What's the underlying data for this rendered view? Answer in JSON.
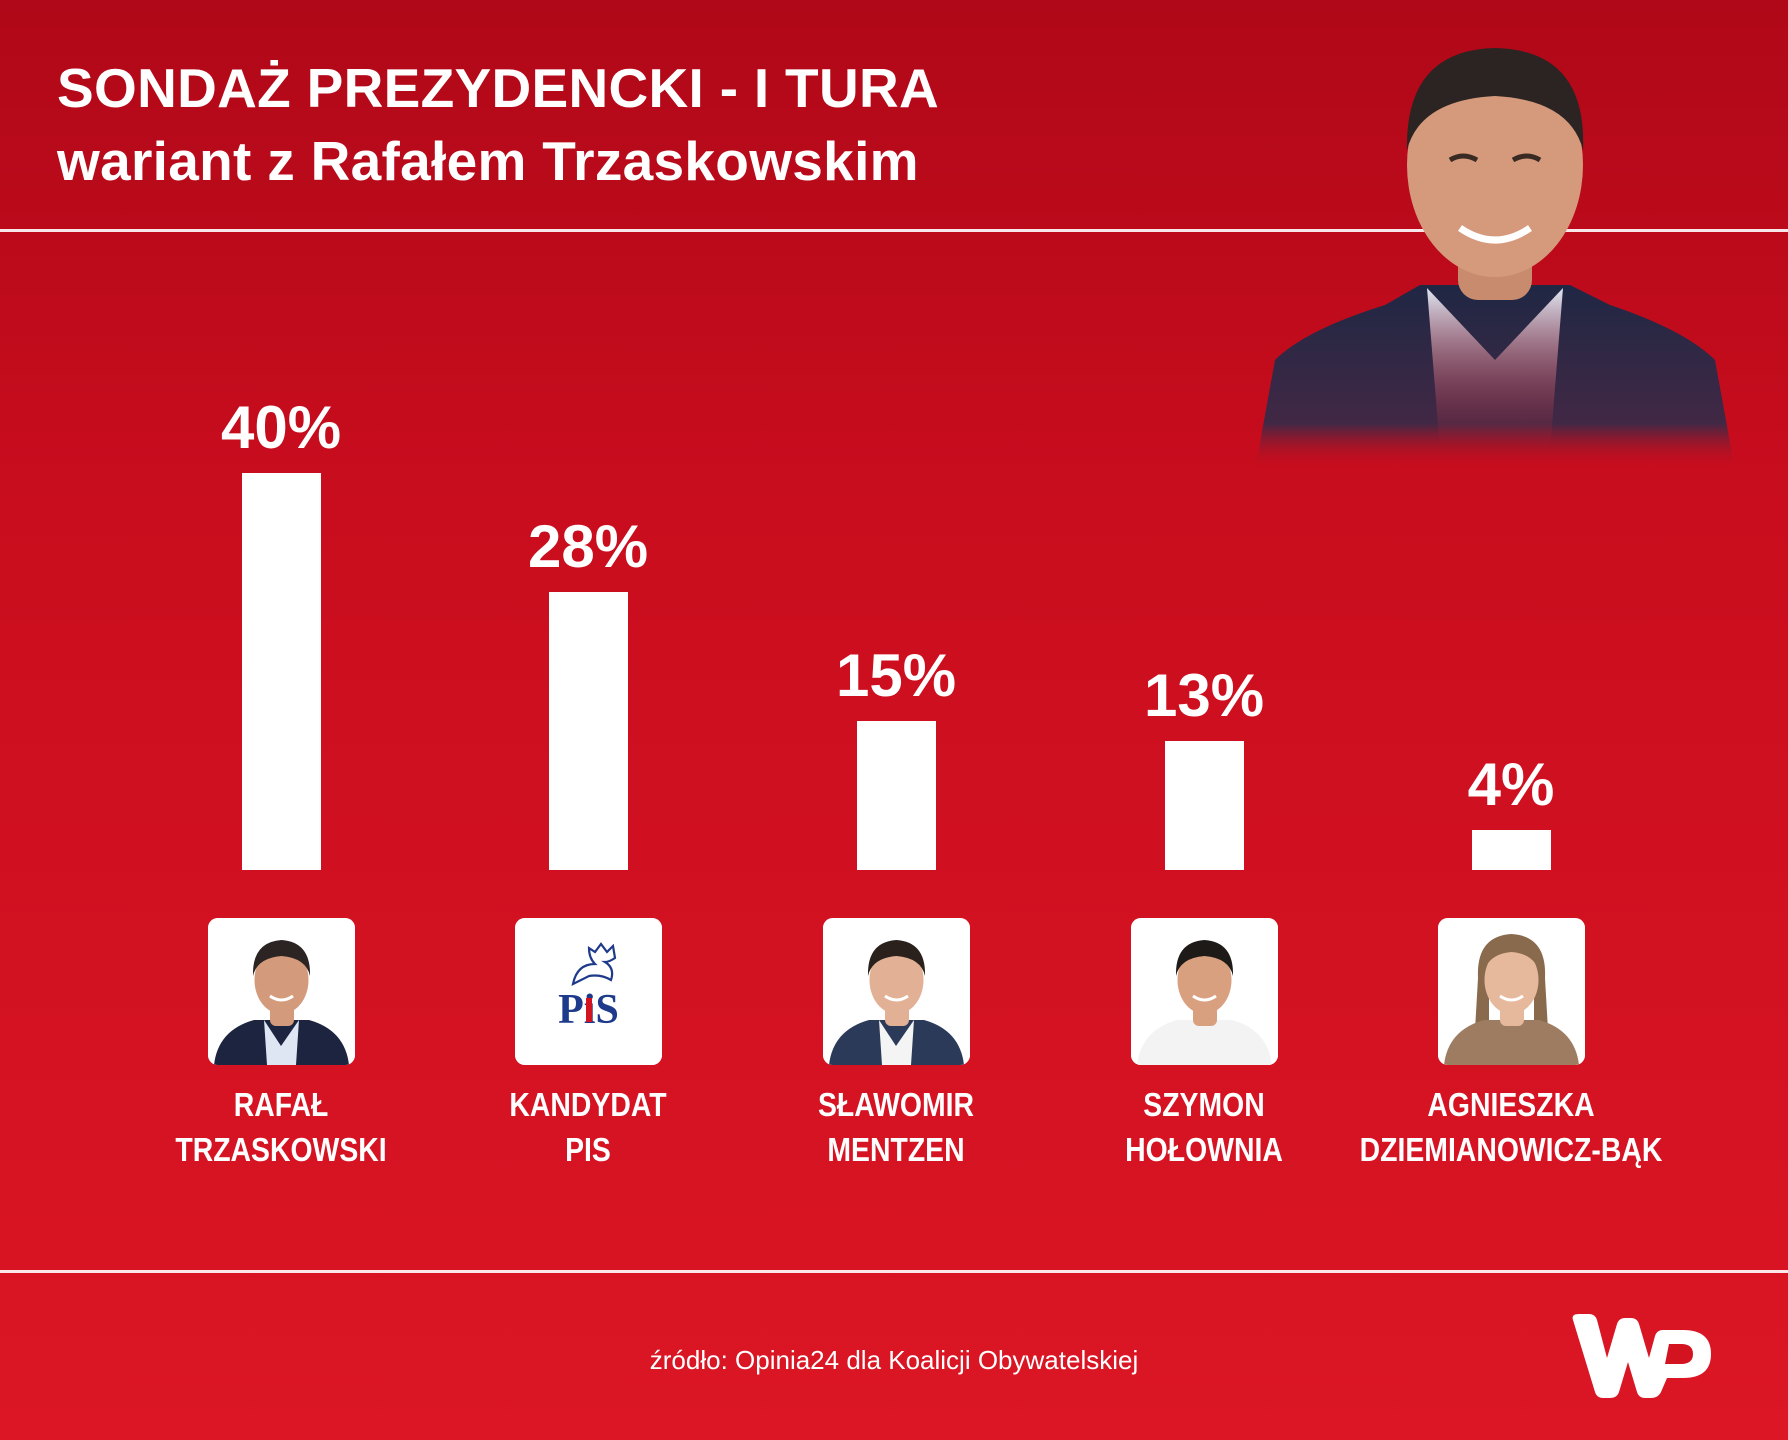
{
  "header": {
    "title_line1": "SONDAŻ PREZYDENCKI - I TURA",
    "title_line2": "wariant z Rafałem Trzaskowskim"
  },
  "chart_data": {
    "type": "bar",
    "categories": [
      "RAFAŁ TRZASKOWSKI",
      "KANDYDAT PIS",
      "SŁAWOMIR MENTZEN",
      "SZYMON HOŁOWNIA",
      "AGNIESZKA DZIEMIANOWICZ-BĄK"
    ],
    "name_lines": [
      [
        "RAFAŁ",
        "TRZASKOWSKI"
      ],
      [
        "KANDYDAT",
        "PIS"
      ],
      [
        "SŁAWOMIR",
        "MENTZEN"
      ],
      [
        "SZYMON",
        "HOŁOWNIA"
      ],
      [
        "AGNIESZKA",
        "DZIEMIANOWICZ-BĄK"
      ]
    ],
    "values": [
      40,
      28,
      15,
      13,
      4
    ],
    "value_labels": [
      "40%",
      "28%",
      "15%",
      "13%",
      "4%"
    ],
    "icons": [
      "trzaskowski-photo",
      "pis-logo",
      "mentzen-photo",
      "holownia-photo",
      "dziemianowicz-bak-photo"
    ],
    "unit": "%",
    "ylim": [
      0,
      40
    ],
    "bar_color": "#ffffff",
    "background_color": "#c90d1e"
  },
  "pis_logo_text": "PiS",
  "footer": {
    "source": "źródło: Opinia24 dla Koalicji Obywatelskiej",
    "logo": "wp-logo"
  }
}
